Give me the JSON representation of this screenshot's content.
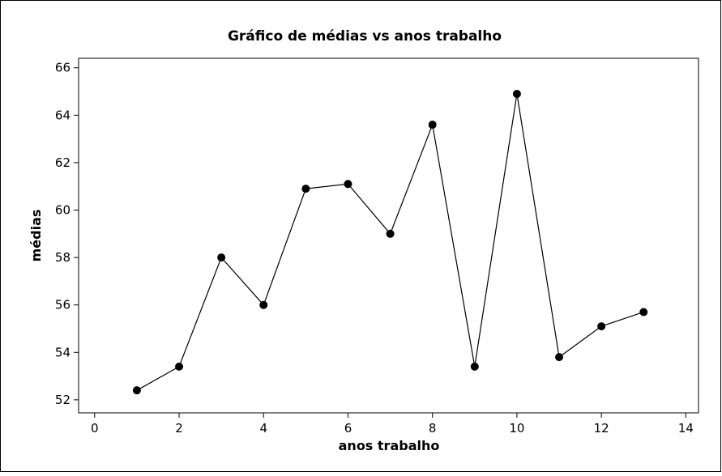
{
  "chart_data": {
    "type": "line",
    "title": "Gráfico de médias vs anos trabalho",
    "x_label": "anos trabalho",
    "y_label": "médias",
    "x": [
      1,
      2,
      3,
      4,
      5,
      6,
      7,
      8,
      9,
      10,
      11,
      12,
      13
    ],
    "series": [
      {
        "name": "médias",
        "color": "#000000",
        "values": [
          52.4,
          53.4,
          58.0,
          56.0,
          60.9,
          61.1,
          59.0,
          63.6,
          53.4,
          64.9,
          53.8,
          55.1,
          55.7
        ]
      }
    ],
    "xlim": [
      -0.38,
      14.3
    ],
    "xticks": [
      0,
      2,
      4,
      6,
      8,
      10,
      12,
      14
    ],
    "ylim": [
      51.45,
      66.4
    ],
    "yticks": [
      52,
      54,
      56,
      58,
      60,
      62,
      64,
      66
    ],
    "grid": false
  }
}
